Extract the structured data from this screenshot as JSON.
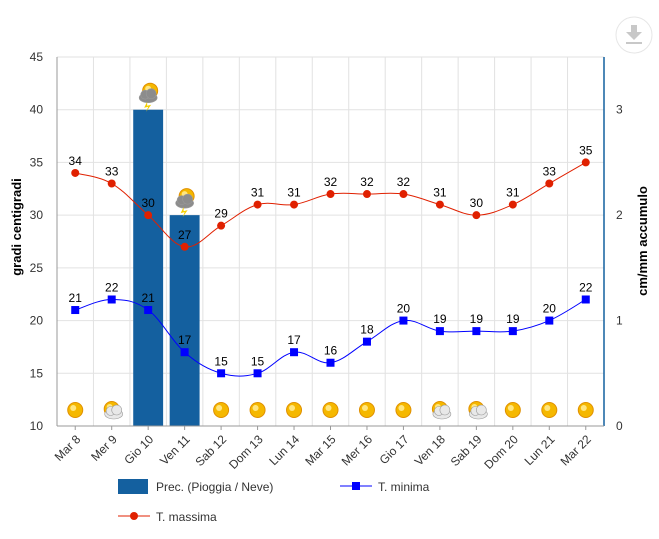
{
  "chart_data": {
    "type": "bar+line",
    "categories": [
      "Mar 8",
      "Mer 9",
      "Gio 10",
      "Ven 11",
      "Sab 12",
      "Dom 13",
      "Lun 14",
      "Mar 15",
      "Mer 16",
      "Gio 17",
      "Ven 18",
      "Sab 19",
      "Dom 20",
      "Lun 21",
      "Mar 22"
    ],
    "y_left": {
      "label": "gradi centigradi",
      "min": 10,
      "max": 45,
      "ticks": [
        10,
        15,
        20,
        25,
        30,
        35,
        40,
        45
      ]
    },
    "y_right": {
      "label": "cm/mm accumulo",
      "min": 0,
      "max": 3.5,
      "ticks": [
        0,
        1,
        2,
        3
      ]
    },
    "series": [
      {
        "name": "Prec. (Pioggia / Neve)",
        "type": "bar",
        "axis": "right",
        "color": "#14609f",
        "values": [
          0,
          0,
          3,
          2,
          0,
          0,
          0,
          0,
          0,
          0,
          0,
          0,
          0,
          0,
          0
        ]
      },
      {
        "name": "T. minima",
        "type": "line",
        "axis": "left",
        "color": "#0000ff",
        "marker": "square",
        "values": [
          21,
          22,
          21,
          17,
          15,
          15,
          17,
          16,
          18,
          20,
          19,
          19,
          19,
          20,
          22
        ]
      },
      {
        "name": "T. massima",
        "type": "line",
        "axis": "left",
        "color": "#e02000",
        "marker": "circle",
        "values": [
          34,
          33,
          30,
          27,
          29,
          31,
          31,
          32,
          32,
          32,
          31,
          30,
          31,
          33,
          35
        ]
      }
    ],
    "weather_icons": [
      "sun",
      "sun-cloud",
      "storm-cloud",
      "storm-cloud",
      "sun",
      "sun",
      "sun",
      "sun",
      "sun",
      "sun",
      "sun-cloud",
      "sun-cloud",
      "sun",
      "sun",
      "sun"
    ],
    "legend_position": "bottom",
    "grid": true
  }
}
